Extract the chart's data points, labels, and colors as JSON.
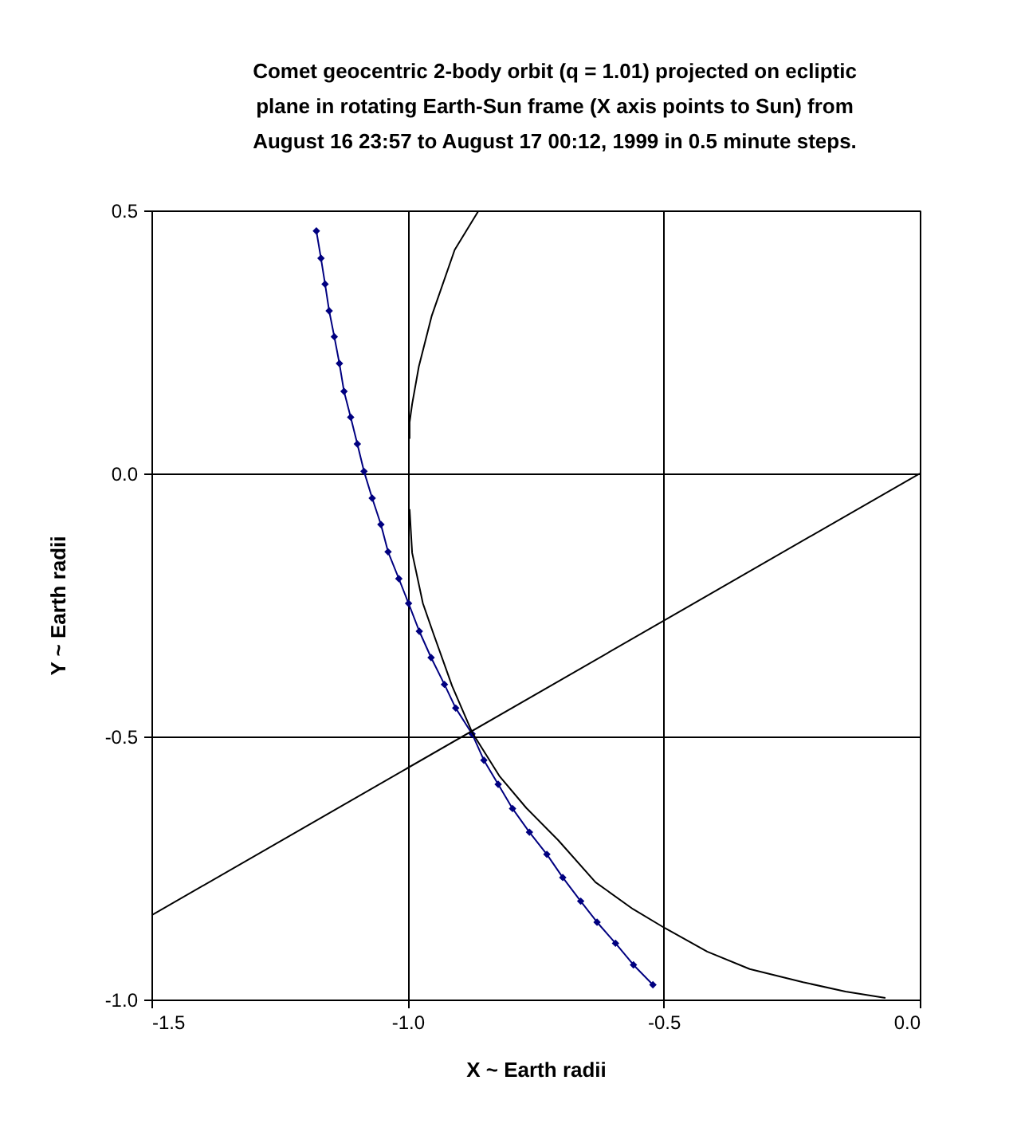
{
  "chart_data": {
    "type": "line",
    "title": "Comet geocentric 2-body orbit (q = 1.01) projected on ecliptic plane in rotating Earth-Sun frame (X axis points to Sun) from August 16 23:57 to August 17 00:12, 1999 in 0.5 minute steps.",
    "xlabel": "X ~ Earth radii",
    "ylabel": "Y ~ Earth radii",
    "xlim": [
      -1.5,
      0
    ],
    "ylim": [
      -1,
      0.5
    ],
    "xticks": [
      -1.5,
      {
        "value": -1,
        "label": "-1.0"
      },
      -0.5,
      {
        "value": 0,
        "label": "0.0"
      }
    ],
    "yticks": [
      {
        "value": -1,
        "label": "-1.0"
      },
      -0.5,
      {
        "value": 0,
        "label": "0.0"
      },
      0.5
    ],
    "grid": true,
    "series": [
      {
        "color": "#000080",
        "marker": "diamond",
        "x": [
          -1.178,
          -1.169,
          -1.161,
          -1.153,
          -1.143,
          -1.133,
          -1.124,
          -1.111,
          -1.098,
          -1.085,
          -1.069,
          -1.052,
          -1.038,
          -1.017,
          -0.998,
          -0.977,
          -0.954,
          -0.928,
          -0.906,
          -0.874,
          -0.851,
          -0.823,
          -0.795,
          -0.762,
          -0.728,
          -0.697,
          -0.662,
          -0.63,
          -0.594,
          -0.559,
          -0.521
        ],
        "values": [
          0.461,
          0.409,
          0.36,
          0.309,
          0.26,
          0.209,
          0.156,
          0.107,
          0.056,
          0.004,
          -0.047,
          -0.097,
          -0.149,
          -0.2,
          -0.247,
          -0.3,
          -0.35,
          -0.401,
          -0.446,
          -0.495,
          -0.545,
          -0.591,
          -0.637,
          -0.682,
          -0.724,
          -0.768,
          -0.813,
          -0.853,
          -0.893,
          -0.934,
          -0.972
        ]
      },
      {
        "color": "#000000",
        "marker": "none",
        "x": [
          -0.861,
          -0.908,
          -0.953,
          -0.978,
          -0.991,
          -0.996,
          -0.996,
          null,
          -0.996,
          -0.991,
          -0.97,
          -0.95,
          -0.913,
          -0.874,
          -0.82,
          -0.768,
          -0.706,
          -0.633,
          -0.56,
          -0.498,
          -0.415,
          -0.332,
          -0.228,
          -0.145,
          -0.067
        ],
        "values": [
          0.5,
          0.425,
          0.299,
          0.203,
          0.132,
          0.097,
          0.066,
          null,
          -0.068,
          -0.151,
          -0.247,
          -0.303,
          -0.404,
          -0.492,
          -0.576,
          -0.636,
          -0.697,
          -0.777,
          -0.828,
          -0.864,
          -0.909,
          -0.942,
          -0.967,
          -0.985,
          -0.997
        ]
      },
      {
        "color": "#000000",
        "marker": "none",
        "x": [
          -1.5,
          0
        ],
        "values": [
          -0.84,
          0
        ]
      }
    ]
  }
}
